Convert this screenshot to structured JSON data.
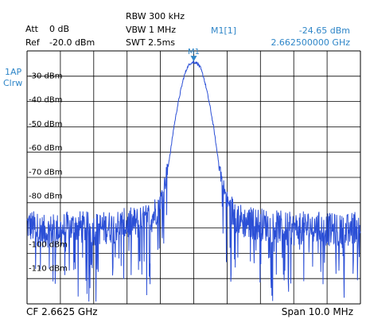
{
  "header": {
    "att_label": "Att",
    "att_value": "0 dB",
    "ref_label": "Ref",
    "ref_value": "-20.0 dBm",
    "rbw": "RBW 300 kHz",
    "vbw": "VBW 1 MHz",
    "swt": "SWT 2.5ms",
    "marker_name": "M1[1]",
    "marker_level": "-24.65 dBm",
    "marker_freq": "2.662500000 GHz"
  },
  "side": {
    "trace_label_1": "1AP",
    "trace_label_2": "Clrw"
  },
  "footer": {
    "center": "CF 2.6625 GHz",
    "span": "Span 10.0 MHz"
  },
  "colors": {
    "trace": "#2b4fd6",
    "marker": "#2f86c8",
    "grid": "#000000",
    "label_blue": "#2f86c8"
  },
  "chart_data": {
    "type": "line",
    "title": "",
    "xlabel": "",
    "ylabel": "",
    "center_freq_ghz": 2.6625,
    "span_mhz": 10.0,
    "xlim_ghz": [
      2.6575,
      2.6675
    ],
    "ylim_dbm": [
      -125,
      -20
    ],
    "grid": true,
    "y_tick_labels": [
      "-30 dBm",
      "-40 dBm",
      "-50 dBm",
      "-60 dBm",
      "-70 dBm",
      "-80 dBm",
      "-100 dBm",
      "-110 dBm"
    ],
    "marker": {
      "label": "M1",
      "x_ghz": 2.6625,
      "y_dbm": -24.65
    },
    "series": [
      {
        "points": [
          [
            -5.0,
            -92
          ],
          [
            -4.5,
            -95
          ],
          [
            -4.0,
            -94
          ],
          [
            -3.5,
            -93
          ],
          [
            -3.0,
            -94
          ],
          [
            -2.5,
            -93
          ],
          [
            -2.0,
            -92
          ],
          [
            -1.5,
            -91
          ],
          [
            -1.2,
            -88
          ],
          [
            -1.0,
            -82
          ],
          [
            -0.9,
            -77
          ],
          [
            -0.8,
            -70
          ],
          [
            -0.7,
            -62
          ],
          [
            -0.6,
            -52
          ],
          [
            -0.5,
            -44
          ],
          [
            -0.4,
            -37
          ],
          [
            -0.3,
            -31
          ],
          [
            -0.2,
            -27
          ],
          [
            -0.1,
            -25
          ],
          [
            0.0,
            -24.65
          ],
          [
            0.1,
            -25
          ],
          [
            0.2,
            -27
          ],
          [
            0.3,
            -31
          ],
          [
            0.4,
            -37
          ],
          [
            0.5,
            -44
          ],
          [
            0.6,
            -52
          ],
          [
            0.7,
            -62
          ],
          [
            0.8,
            -70
          ],
          [
            0.9,
            -77
          ],
          [
            1.0,
            -82
          ],
          [
            1.2,
            -88
          ],
          [
            1.5,
            -91
          ],
          [
            2.0,
            -92
          ],
          [
            2.5,
            -93
          ],
          [
            3.0,
            -94
          ],
          [
            3.5,
            -93
          ],
          [
            4.0,
            -94
          ],
          [
            4.5,
            -95
          ],
          [
            5.0,
            -92
          ]
        ]
      }
    ]
  }
}
